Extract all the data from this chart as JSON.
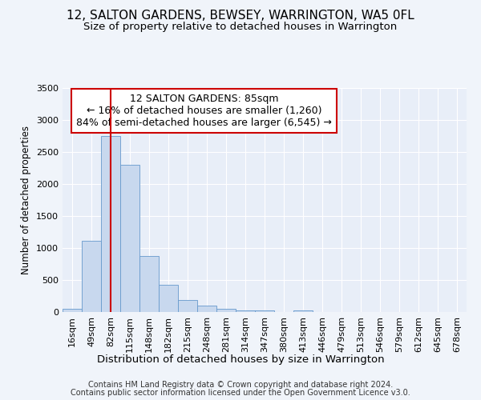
{
  "title1": "12, SALTON GARDENS, BEWSEY, WARRINGTON, WA5 0FL",
  "title2": "Size of property relative to detached houses in Warrington",
  "xlabel": "Distribution of detached houses by size in Warrington",
  "ylabel": "Number of detached properties",
  "footnote1": "Contains HM Land Registry data © Crown copyright and database right 2024.",
  "footnote2": "Contains public sector information licensed under the Open Government Licence v3.0.",
  "annotation_title": "12 SALTON GARDENS: 85sqm",
  "annotation_line1": "← 16% of detached houses are smaller (1,260)",
  "annotation_line2": "84% of semi-detached houses are larger (6,545) →",
  "property_bin_index": 2,
  "bar_color": "#c8d8ee",
  "bar_edge_color": "#6699cc",
  "vline_color": "#cc0000",
  "background_color": "#f0f4fa",
  "plot_bg_color": "#e8eef8",
  "grid_color": "#ffffff",
  "annotation_box_color": "#ffffff",
  "annotation_border_color": "#cc0000",
  "bin_labels": [
    "16sqm",
    "49sqm",
    "82sqm",
    "115sqm",
    "148sqm",
    "182sqm",
    "215sqm",
    "248sqm",
    "281sqm",
    "314sqm",
    "347sqm",
    "380sqm",
    "413sqm",
    "446sqm",
    "479sqm",
    "513sqm",
    "546sqm",
    "579sqm",
    "612sqm",
    "645sqm",
    "678sqm"
  ],
  "bar_values": [
    50,
    1110,
    2750,
    2300,
    875,
    430,
    185,
    100,
    55,
    30,
    20,
    5,
    20,
    0,
    0,
    0,
    0,
    0,
    0,
    0,
    0
  ],
  "ylim": [
    0,
    3500
  ],
  "yticks": [
    0,
    500,
    1000,
    1500,
    2000,
    2500,
    3000,
    3500
  ],
  "title1_fontsize": 11,
  "title2_fontsize": 9.5,
  "xlabel_fontsize": 9.5,
  "ylabel_fontsize": 8.5,
  "tick_fontsize": 8,
  "annotation_fontsize": 9,
  "footnote_fontsize": 7
}
